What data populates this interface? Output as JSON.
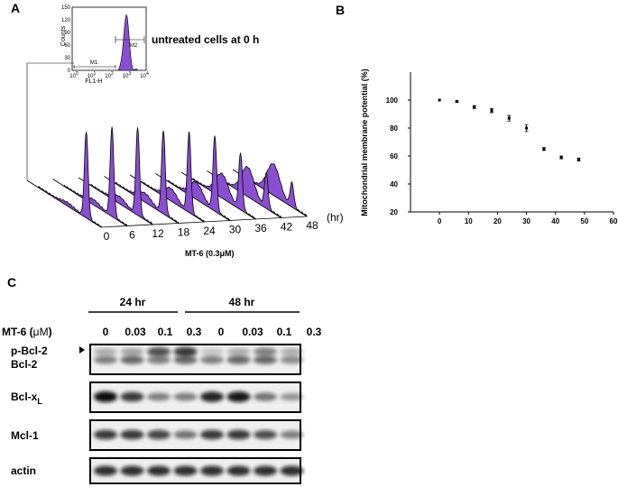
{
  "panel_a": {
    "label": "A",
    "inset": {
      "y_axis_label": "Counts",
      "x_axis_label": "FL1-H",
      "yticks": [
        0,
        30,
        60,
        90,
        120,
        150
      ],
      "xtick_base": "10",
      "xtick_exponents": [
        0,
        1,
        2,
        3,
        4
      ],
      "markers": [
        "M1",
        "M2"
      ]
    },
    "annotation": "untreated cells at 0 h",
    "time_labels": [
      0,
      6,
      12,
      18,
      24,
      30,
      36,
      42,
      48
    ],
    "time_unit": "(hr)",
    "treatment": "MT-6 (0.3μM)"
  },
  "chart_data": {
    "type": "scatter",
    "label": "B",
    "y_axis_label": "Mitochondrial membrane potential (%)",
    "x": [
      0,
      6,
      12,
      18,
      24,
      30,
      36,
      42,
      48
    ],
    "values": [
      100,
      99,
      95,
      92.5,
      87,
      80,
      65,
      59,
      57.5
    ],
    "errors": [
      0,
      0.7,
      1,
      1.5,
      2,
      2.5,
      1,
      1,
      1
    ],
    "xlim": [
      -10,
      60
    ],
    "ylim": [
      20,
      120
    ],
    "xticks": [
      0,
      10,
      20,
      30,
      40,
      50,
      60
    ],
    "yticks": [
      20,
      40,
      60,
      80,
      100
    ],
    "color": "#000000"
  },
  "panel_c": {
    "label": "C",
    "time_points": [
      "24 hr",
      "48 hr"
    ],
    "treatment_prefix": "MT-6 (",
    "treatment_unit": "μM",
    "treatment_suffix": ")",
    "doses": [
      "0",
      "0.03",
      "0.1",
      "0.3"
    ],
    "rows": {
      "p_bcl2": "p-Bcl-2",
      "bcl2": "Bcl-2",
      "bclxl_base": "Bcl-x",
      "bclxl_sub": "L",
      "mcl1": "Mcl-1",
      "actin": "actin"
    }
  }
}
